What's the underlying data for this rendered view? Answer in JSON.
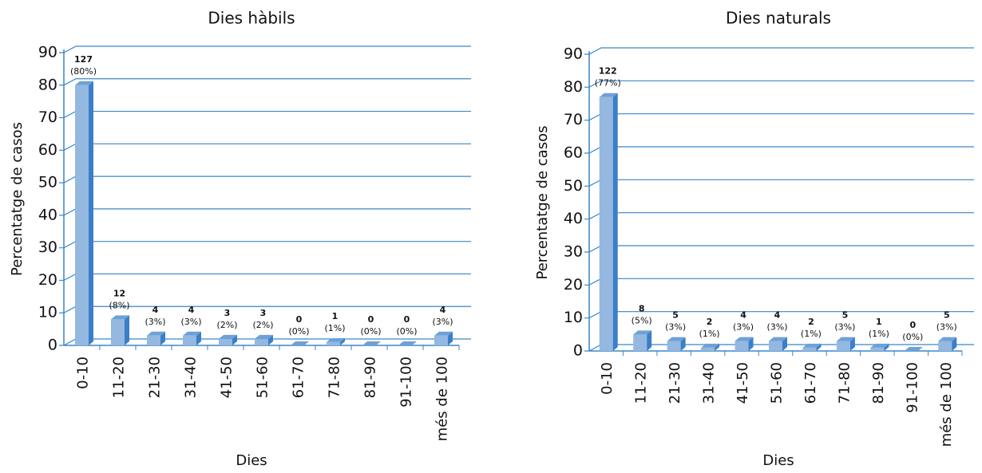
{
  "chart_data": [
    {
      "type": "bar3d",
      "title": "Dies hàbils",
      "xlabel": "Dies",
      "ylabel": "Percentatge de casos",
      "categories": [
        "0-10",
        "11-20",
        "21-30",
        "31-40",
        "41-50",
        "51-60",
        "61-70",
        "71-80",
        "81-90",
        "91-100",
        "més de 100"
      ],
      "values": [
        80,
        8,
        3,
        3,
        2,
        2,
        0,
        1,
        0,
        0,
        3
      ],
      "value_labels": [
        "(80%)",
        "(8%)",
        "(3%)",
        "(3%)",
        "(2%)",
        "(2%)",
        "(0%)",
        "(1%)",
        "(0%)",
        "(0%)",
        "(3%)"
      ],
      "counts": [
        127,
        12,
        4,
        4,
        3,
        3,
        0,
        1,
        0,
        0,
        4
      ],
      "color": "#94b8e0",
      "ylim": [
        0,
        90
      ],
      "yticks": [
        0,
        10,
        20,
        30,
        40,
        50,
        60,
        70,
        80,
        90
      ],
      "grid": true
    },
    {
      "type": "bar3d",
      "title": "Dies naturals",
      "xlabel": "Dies",
      "ylabel": "Percentatge de casos",
      "categories": [
        "0-10",
        "11-20",
        "21-30",
        "31-40",
        "41-50",
        "51-60",
        "61-70",
        "71-80",
        "81-90",
        "91-100",
        "més de 100"
      ],
      "values": [
        77,
        5,
        3,
        1,
        3,
        3,
        1,
        3,
        1,
        0,
        3
      ],
      "value_labels": [
        "(77%)",
        "(5%)",
        "(3%)",
        "(1%)",
        "(3%)",
        "(3%)",
        "(1%)",
        "(3%)",
        "(1%)",
        "(0%)",
        "(3%)"
      ],
      "counts": [
        122,
        8,
        5,
        2,
        4,
        4,
        2,
        5,
        1,
        0,
        5
      ],
      "color": "#94b8e0",
      "ylim": [
        0,
        90
      ],
      "yticks": [
        0,
        10,
        20,
        30,
        40,
        50,
        60,
        70,
        80,
        90
      ],
      "grid": true
    }
  ]
}
